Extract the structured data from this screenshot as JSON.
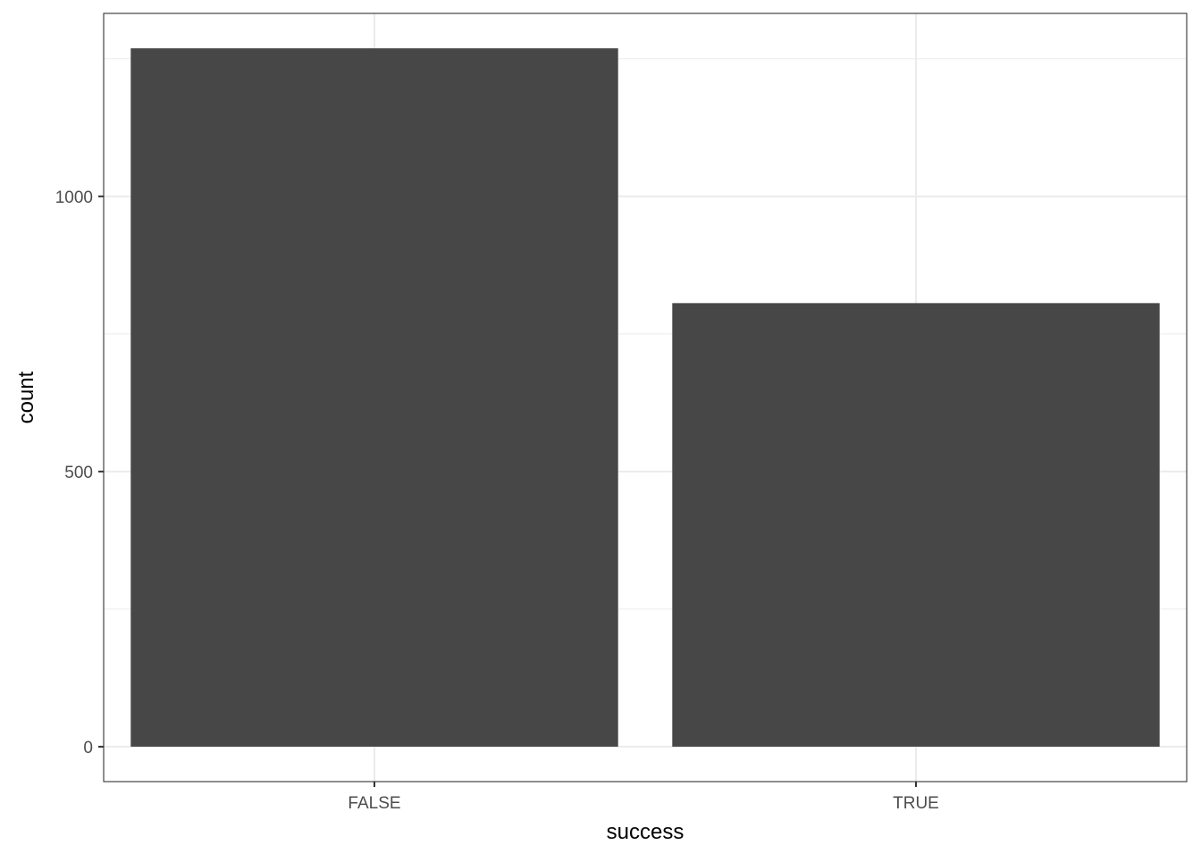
{
  "chart_data": {
    "type": "bar",
    "title": "",
    "xlabel": "success",
    "ylabel": "count",
    "categories": [
      "FALSE",
      "TRUE"
    ],
    "values": [
      1269,
      806
    ],
    "ylim": [
      -63.45,
      1332.45
    ],
    "yticks": [
      0,
      500,
      1000
    ],
    "yticks_minor": [
      250,
      750,
      1250
    ],
    "grid": true,
    "theme": "bw",
    "bar_color": "#474747",
    "grid_color": "#ebebeb",
    "panel_border_color": "#333333"
  }
}
